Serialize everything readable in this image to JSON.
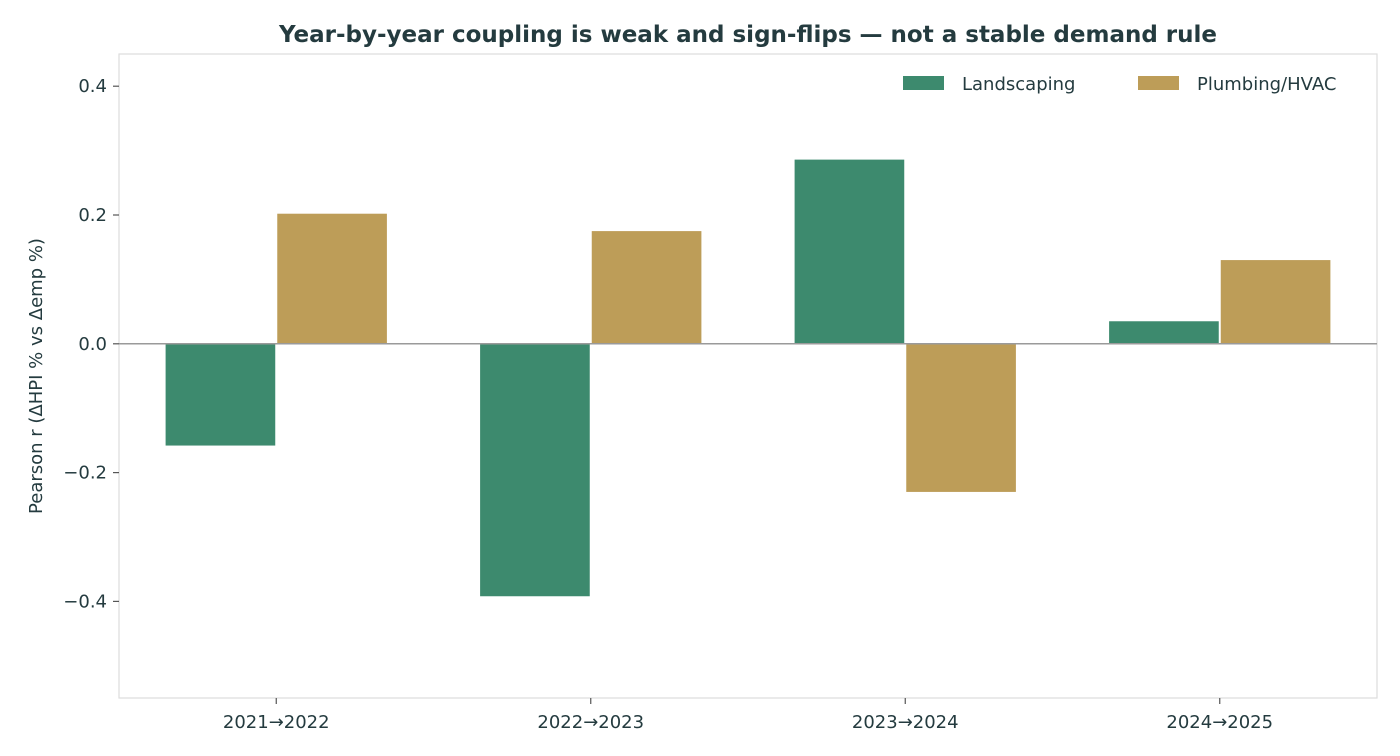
{
  "chart_data": {
    "type": "bar",
    "title": "Year-by-year coupling is weak and sign-flips — not a stable demand rule",
    "xlabel": "",
    "ylabel": "Pearson r (ΔHPI % vs Δemp %)",
    "categories": [
      "2021→2022",
      "2022→2023",
      "2023→2024",
      "2024→2025"
    ],
    "series": [
      {
        "name": "Landscaping",
        "color": "#3d8a6e",
        "values": [
          -0.158,
          -0.392,
          0.286,
          0.035
        ]
      },
      {
        "name": "Plumbing/HVAC",
        "color": "#bd9d58",
        "values": [
          0.202,
          0.175,
          -0.23,
          0.13
        ]
      }
    ],
    "ylim": [
      -0.55,
      0.45
    ],
    "yticks": [
      0.4,
      0.2,
      0.0,
      -0.2,
      -0.4
    ],
    "ytick_labels": [
      "0.4",
      "0.2",
      "0.0",
      "−0.2",
      "−0.4"
    ],
    "grid": false,
    "zero_line": true,
    "legend_position": "top-right"
  }
}
